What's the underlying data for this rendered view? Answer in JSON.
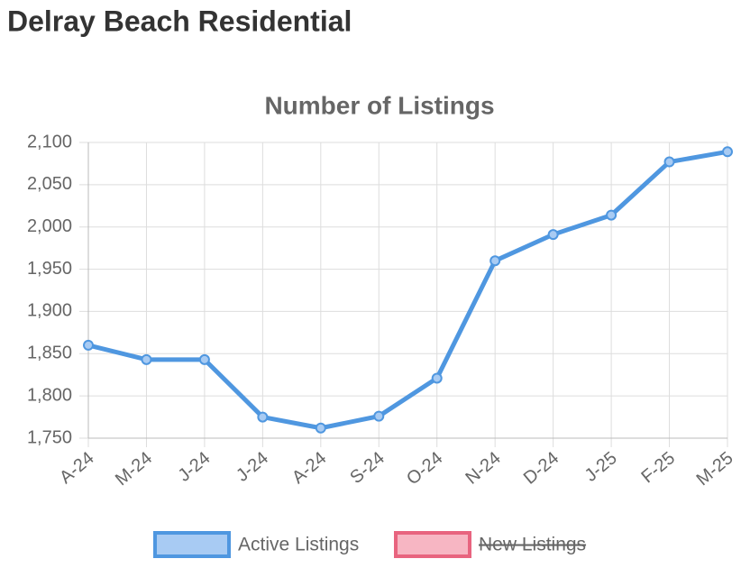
{
  "header": {
    "title": "Delray Beach Residential"
  },
  "chart_data": {
    "type": "line",
    "title": "Number of Listings",
    "categories": [
      "A-24",
      "M-24",
      "J-24",
      "J-24",
      "A-24",
      "S-24",
      "O-24",
      "N-24",
      "D-24",
      "J-25",
      "F-25",
      "M-25"
    ],
    "series": [
      {
        "name": "Active Listings",
        "color": "#4f97e0",
        "fill": "#a8cbf3",
        "hidden": false,
        "values": [
          1860,
          1843,
          1843,
          1775,
          1762,
          1776,
          1821,
          1960,
          1991,
          2014,
          2077,
          2089
        ]
      },
      {
        "name": "New Listings",
        "color": "#e8647f",
        "fill": "#f7b6c3",
        "hidden": true,
        "values": [
          null,
          null,
          null,
          null,
          null,
          null,
          null,
          null,
          null,
          null,
          null,
          null
        ]
      }
    ],
    "ylim": [
      1750,
      2100
    ],
    "yticks": [
      {
        "value": 1750,
        "label": "1,750"
      },
      {
        "value": 1800,
        "label": "1,800"
      },
      {
        "value": 1850,
        "label": "1,850"
      },
      {
        "value": 1900,
        "label": "1,900"
      },
      {
        "value": 1950,
        "label": "1,950"
      },
      {
        "value": 2000,
        "label": "2,000"
      },
      {
        "value": 2050,
        "label": "2,050"
      },
      {
        "value": 2100,
        "label": "2,100"
      }
    ],
    "grid": true
  }
}
